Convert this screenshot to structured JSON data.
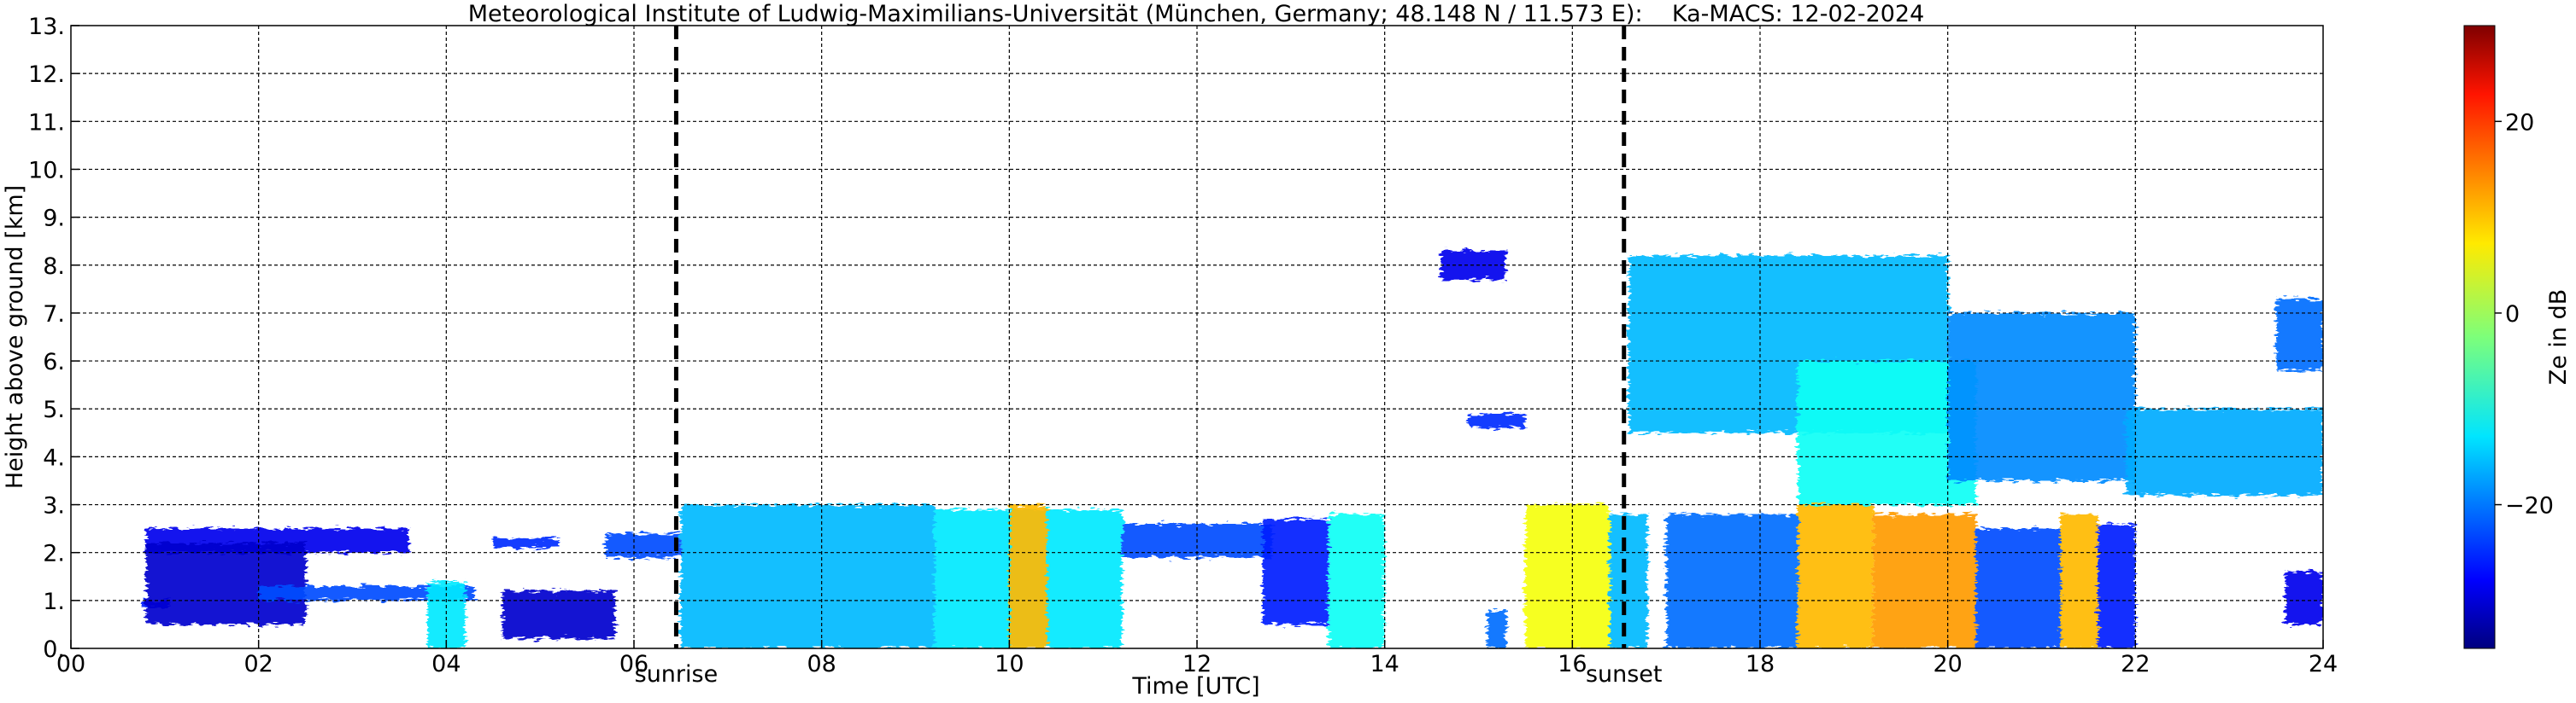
{
  "chart_data": {
    "type": "heatmap",
    "title": "Meteorological Institute of Ludwig-Maximilians-Universität (München, Germany; 48.148 N / 11.573 E):    Ka-MACS: 12-02-2024",
    "xlabel": "Time [UTC]",
    "ylabel": "Height above ground [km]",
    "xlim": [
      0,
      24
    ],
    "ylim": [
      0,
      13
    ],
    "xticks": [
      "00",
      "02",
      "04",
      "06",
      "08",
      "10",
      "12",
      "14",
      "16",
      "18",
      "20",
      "22",
      "24"
    ],
    "yticks": [
      "0.",
      "1.",
      "2.",
      "3.",
      "4.",
      "5.",
      "6.",
      "7.",
      "8.",
      "9.",
      "10.",
      "11.",
      "12.",
      "13."
    ],
    "grid": true,
    "markers": [
      {
        "label": "sunrise",
        "x": 6.45
      },
      {
        "label": "sunset",
        "x": 16.55
      }
    ],
    "colorbar": {
      "label": "Ze in dB",
      "ticks": [
        "20",
        "0",
        "−20"
      ],
      "tick_values": [
        20,
        0,
        -20
      ],
      "range": [
        -35,
        30
      ],
      "colormap": "jet"
    },
    "echo_regions": [
      {
        "x": [
          0.75,
          1.05
        ],
        "y": [
          0.85,
          1.0
        ],
        "ze": -25
      },
      {
        "x": [
          0.8,
          3.6
        ],
        "y": [
          2.0,
          2.5
        ],
        "ze": -28
      },
      {
        "x": [
          0.8,
          2.5
        ],
        "y": [
          0.5,
          2.2
        ],
        "ze": -30
      },
      {
        "x": [
          2.0,
          4.3
        ],
        "y": [
          1.0,
          1.3
        ],
        "ze": -22
      },
      {
        "x": [
          3.8,
          4.2
        ],
        "y": [
          0.0,
          1.4
        ],
        "ze": -12
      },
      {
        "x": [
          4.5,
          5.2
        ],
        "y": [
          2.1,
          2.3
        ],
        "ze": -24
      },
      {
        "x": [
          4.6,
          5.8
        ],
        "y": [
          0.2,
          1.2
        ],
        "ze": -30
      },
      {
        "x": [
          5.7,
          6.5
        ],
        "y": [
          1.9,
          2.4
        ],
        "ze": -22
      },
      {
        "x": [
          6.5,
          9.2
        ],
        "y": [
          0.0,
          3.0
        ],
        "ze": -15
      },
      {
        "x": [
          9.2,
          11.2
        ],
        "y": [
          0.0,
          2.9
        ],
        "ze": -12
      },
      {
        "x": [
          10.0,
          10.4
        ],
        "y": [
          0.0,
          3.0
        ],
        "ze": 10
      },
      {
        "x": [
          11.2,
          12.8
        ],
        "y": [
          1.9,
          2.6
        ],
        "ze": -22
      },
      {
        "x": [
          12.7,
          13.4
        ],
        "y": [
          0.5,
          2.7
        ],
        "ze": -25
      },
      {
        "x": [
          13.4,
          14.0
        ],
        "y": [
          0.0,
          2.8
        ],
        "ze": -10
      },
      {
        "x": [
          14.6,
          15.3
        ],
        "y": [
          7.7,
          8.3
        ],
        "ze": -28
      },
      {
        "x": [
          14.9,
          15.5
        ],
        "y": [
          4.6,
          4.9
        ],
        "ze": -24
      },
      {
        "x": [
          15.1,
          15.3
        ],
        "y": [
          0.0,
          0.8
        ],
        "ze": -20
      },
      {
        "x": [
          15.5,
          16.4
        ],
        "y": [
          0.0,
          3.0
        ],
        "ze": 5
      },
      {
        "x": [
          16.4,
          16.8
        ],
        "y": [
          0.0,
          2.8
        ],
        "ze": -15
      },
      {
        "x": [
          16.6,
          20.0
        ],
        "y": [
          4.5,
          8.2
        ],
        "ze": -15
      },
      {
        "x": [
          18.4,
          20.3
        ],
        "y": [
          3.0,
          6.0
        ],
        "ze": -10
      },
      {
        "x": [
          20.0,
          22.0
        ],
        "y": [
          3.5,
          7.0
        ],
        "ze": -18
      },
      {
        "x": [
          17.0,
          18.4
        ],
        "y": [
          0.0,
          2.8
        ],
        "ze": -20
      },
      {
        "x": [
          18.4,
          19.2
        ],
        "y": [
          0.0,
          3.0
        ],
        "ze": 10
      },
      {
        "x": [
          19.2,
          20.3
        ],
        "y": [
          0.0,
          2.8
        ],
        "ze": 12
      },
      {
        "x": [
          20.3,
          21.2
        ],
        "y": [
          0.0,
          2.5
        ],
        "ze": -22
      },
      {
        "x": [
          21.2,
          21.6
        ],
        "y": [
          0.0,
          2.8
        ],
        "ze": 10
      },
      {
        "x": [
          21.6,
          22.0
        ],
        "y": [
          0.0,
          2.6
        ],
        "ze": -25
      },
      {
        "x": [
          21.9,
          24.0
        ],
        "y": [
          3.2,
          5.0
        ],
        "ze": -16
      },
      {
        "x": [
          23.5,
          24.0
        ],
        "y": [
          5.8,
          7.3
        ],
        "ze": -20
      },
      {
        "x": [
          23.6,
          24.0
        ],
        "y": [
          0.5,
          1.6
        ],
        "ze": -28
      }
    ]
  }
}
